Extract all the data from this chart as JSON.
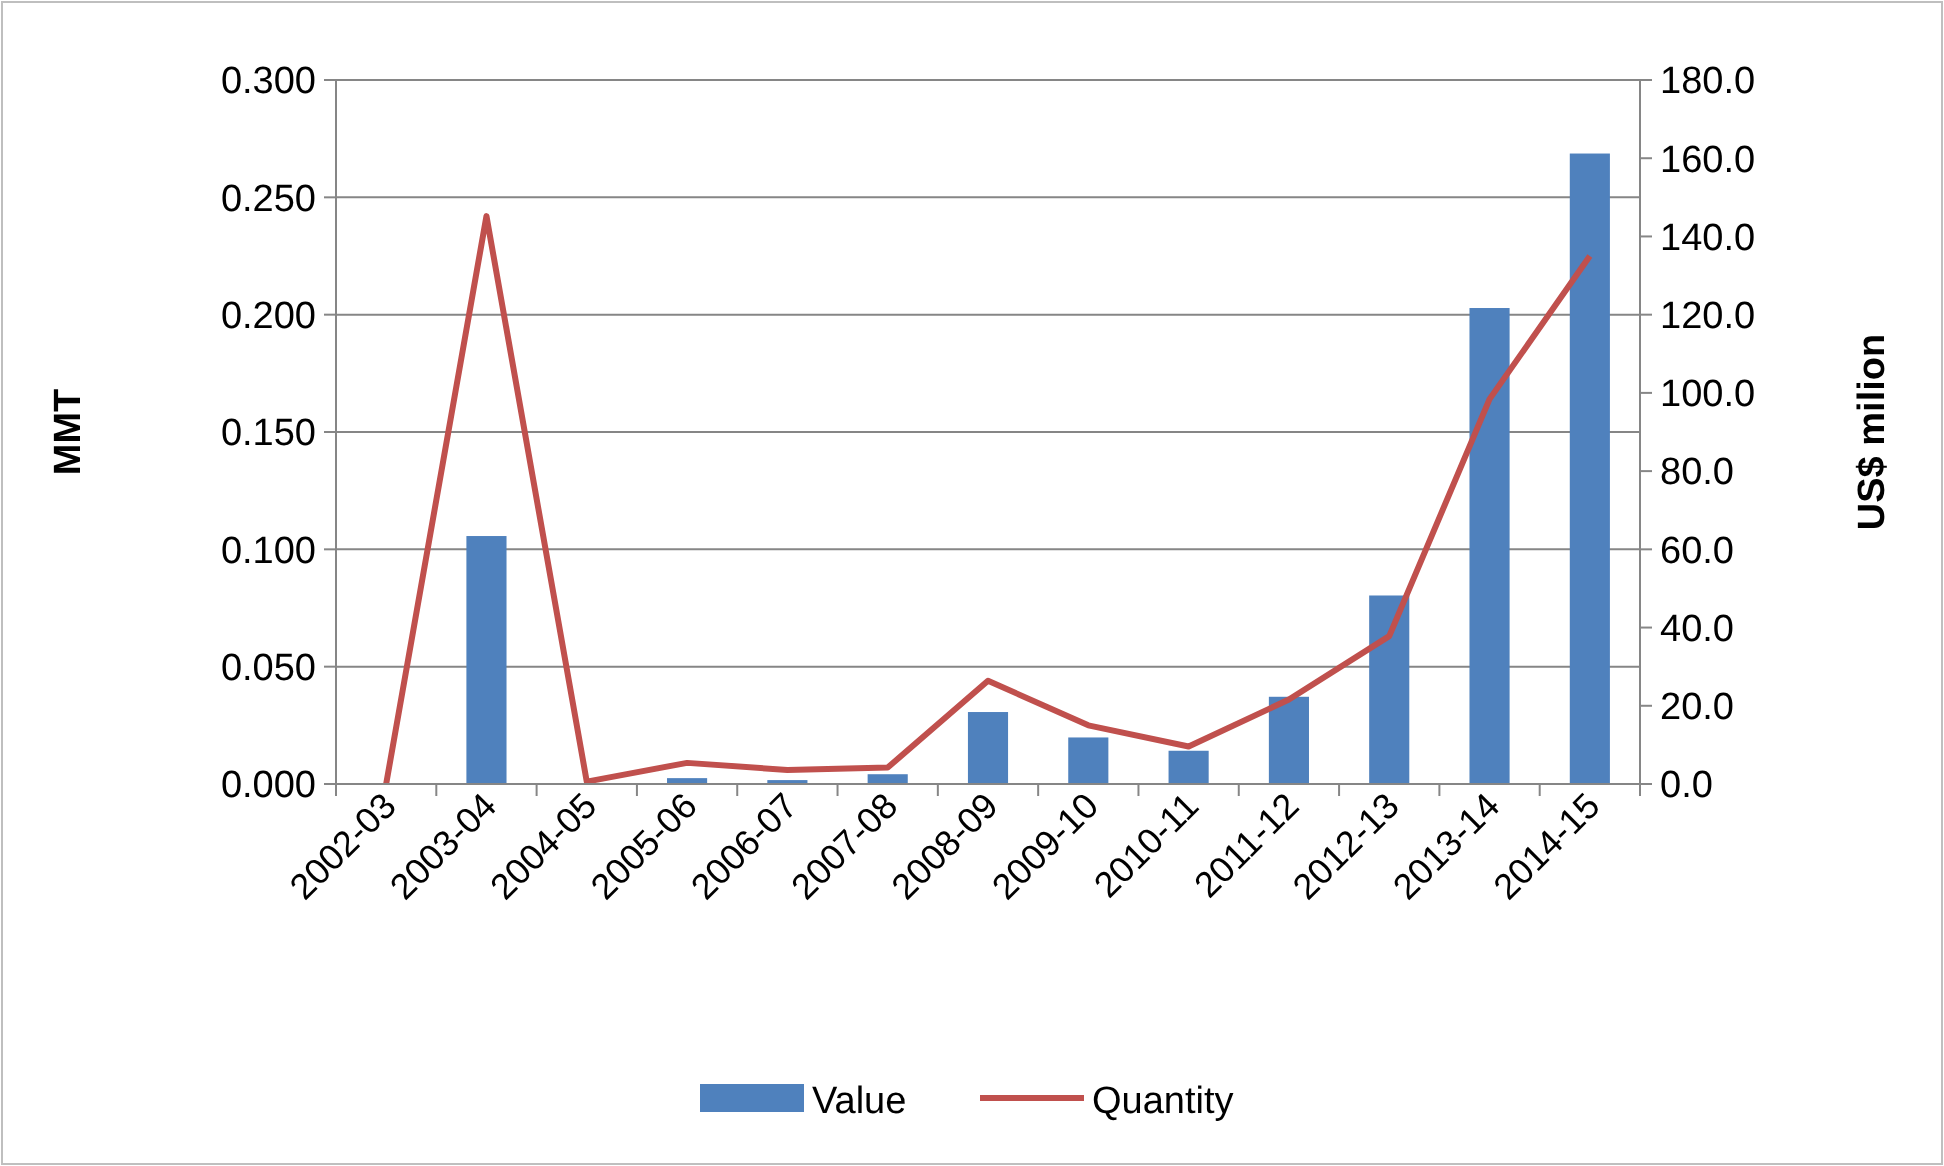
{
  "chart_data": {
    "type": "bar",
    "categories": [
      "2002-03",
      "2003-04",
      "2004-05",
      "2005-06",
      "2006-07",
      "2007-08",
      "2008-09",
      "2009-10",
      "2010-11",
      "2011-12",
      "2012-13",
      "2013-14",
      "2014-15"
    ],
    "series": [
      {
        "name": "Value",
        "axis": "y2",
        "color": "#4f81bd",
        "values": [
          0,
          63.4,
          0,
          1.5,
          1,
          2.5,
          18.4,
          11.9,
          8.5,
          22.3,
          48.2,
          121.7,
          161.2
        ]
      },
      {
        "name": "Quantity",
        "type": "line",
        "color": "#c0504d",
        "values": [
          0,
          0.242,
          0.001,
          0.009,
          0.006,
          0.007,
          0.044,
          0.025,
          0.016,
          0.036,
          0.063,
          0.164,
          0.225
        ]
      }
    ],
    "ylabel": "MMT",
    "y2label": "US$ milion",
    "ylim": [
      0,
      0.3
    ],
    "yticks": [
      {
        "value": 0,
        "label": "0.000"
      },
      {
        "value": 0.05,
        "label": "0.050"
      },
      {
        "value": 0.1,
        "label": "0.100"
      },
      {
        "value": 0.15,
        "label": "0.150"
      },
      {
        "value": 0.2,
        "label": "0.200"
      },
      {
        "value": 0.25,
        "label": "0.250"
      },
      {
        "value": 0.3,
        "label": "0.300"
      }
    ],
    "y2lim": [
      0,
      180
    ],
    "y2ticks": [
      {
        "value": 0,
        "label": "0.0"
      },
      {
        "value": 20,
        "label": "20.0"
      },
      {
        "value": 40,
        "label": "40.0"
      },
      {
        "value": 60,
        "label": "60.0"
      },
      {
        "value": 80,
        "label": "80.0"
      },
      {
        "value": 100,
        "label": "100.0"
      },
      {
        "value": 120,
        "label": "120.0"
      },
      {
        "value": 140,
        "label": "140.0"
      },
      {
        "value": 160,
        "label": "160.0"
      },
      {
        "value": 180,
        "label": "180.0"
      }
    ],
    "grid": "y",
    "legend": "bottom"
  }
}
